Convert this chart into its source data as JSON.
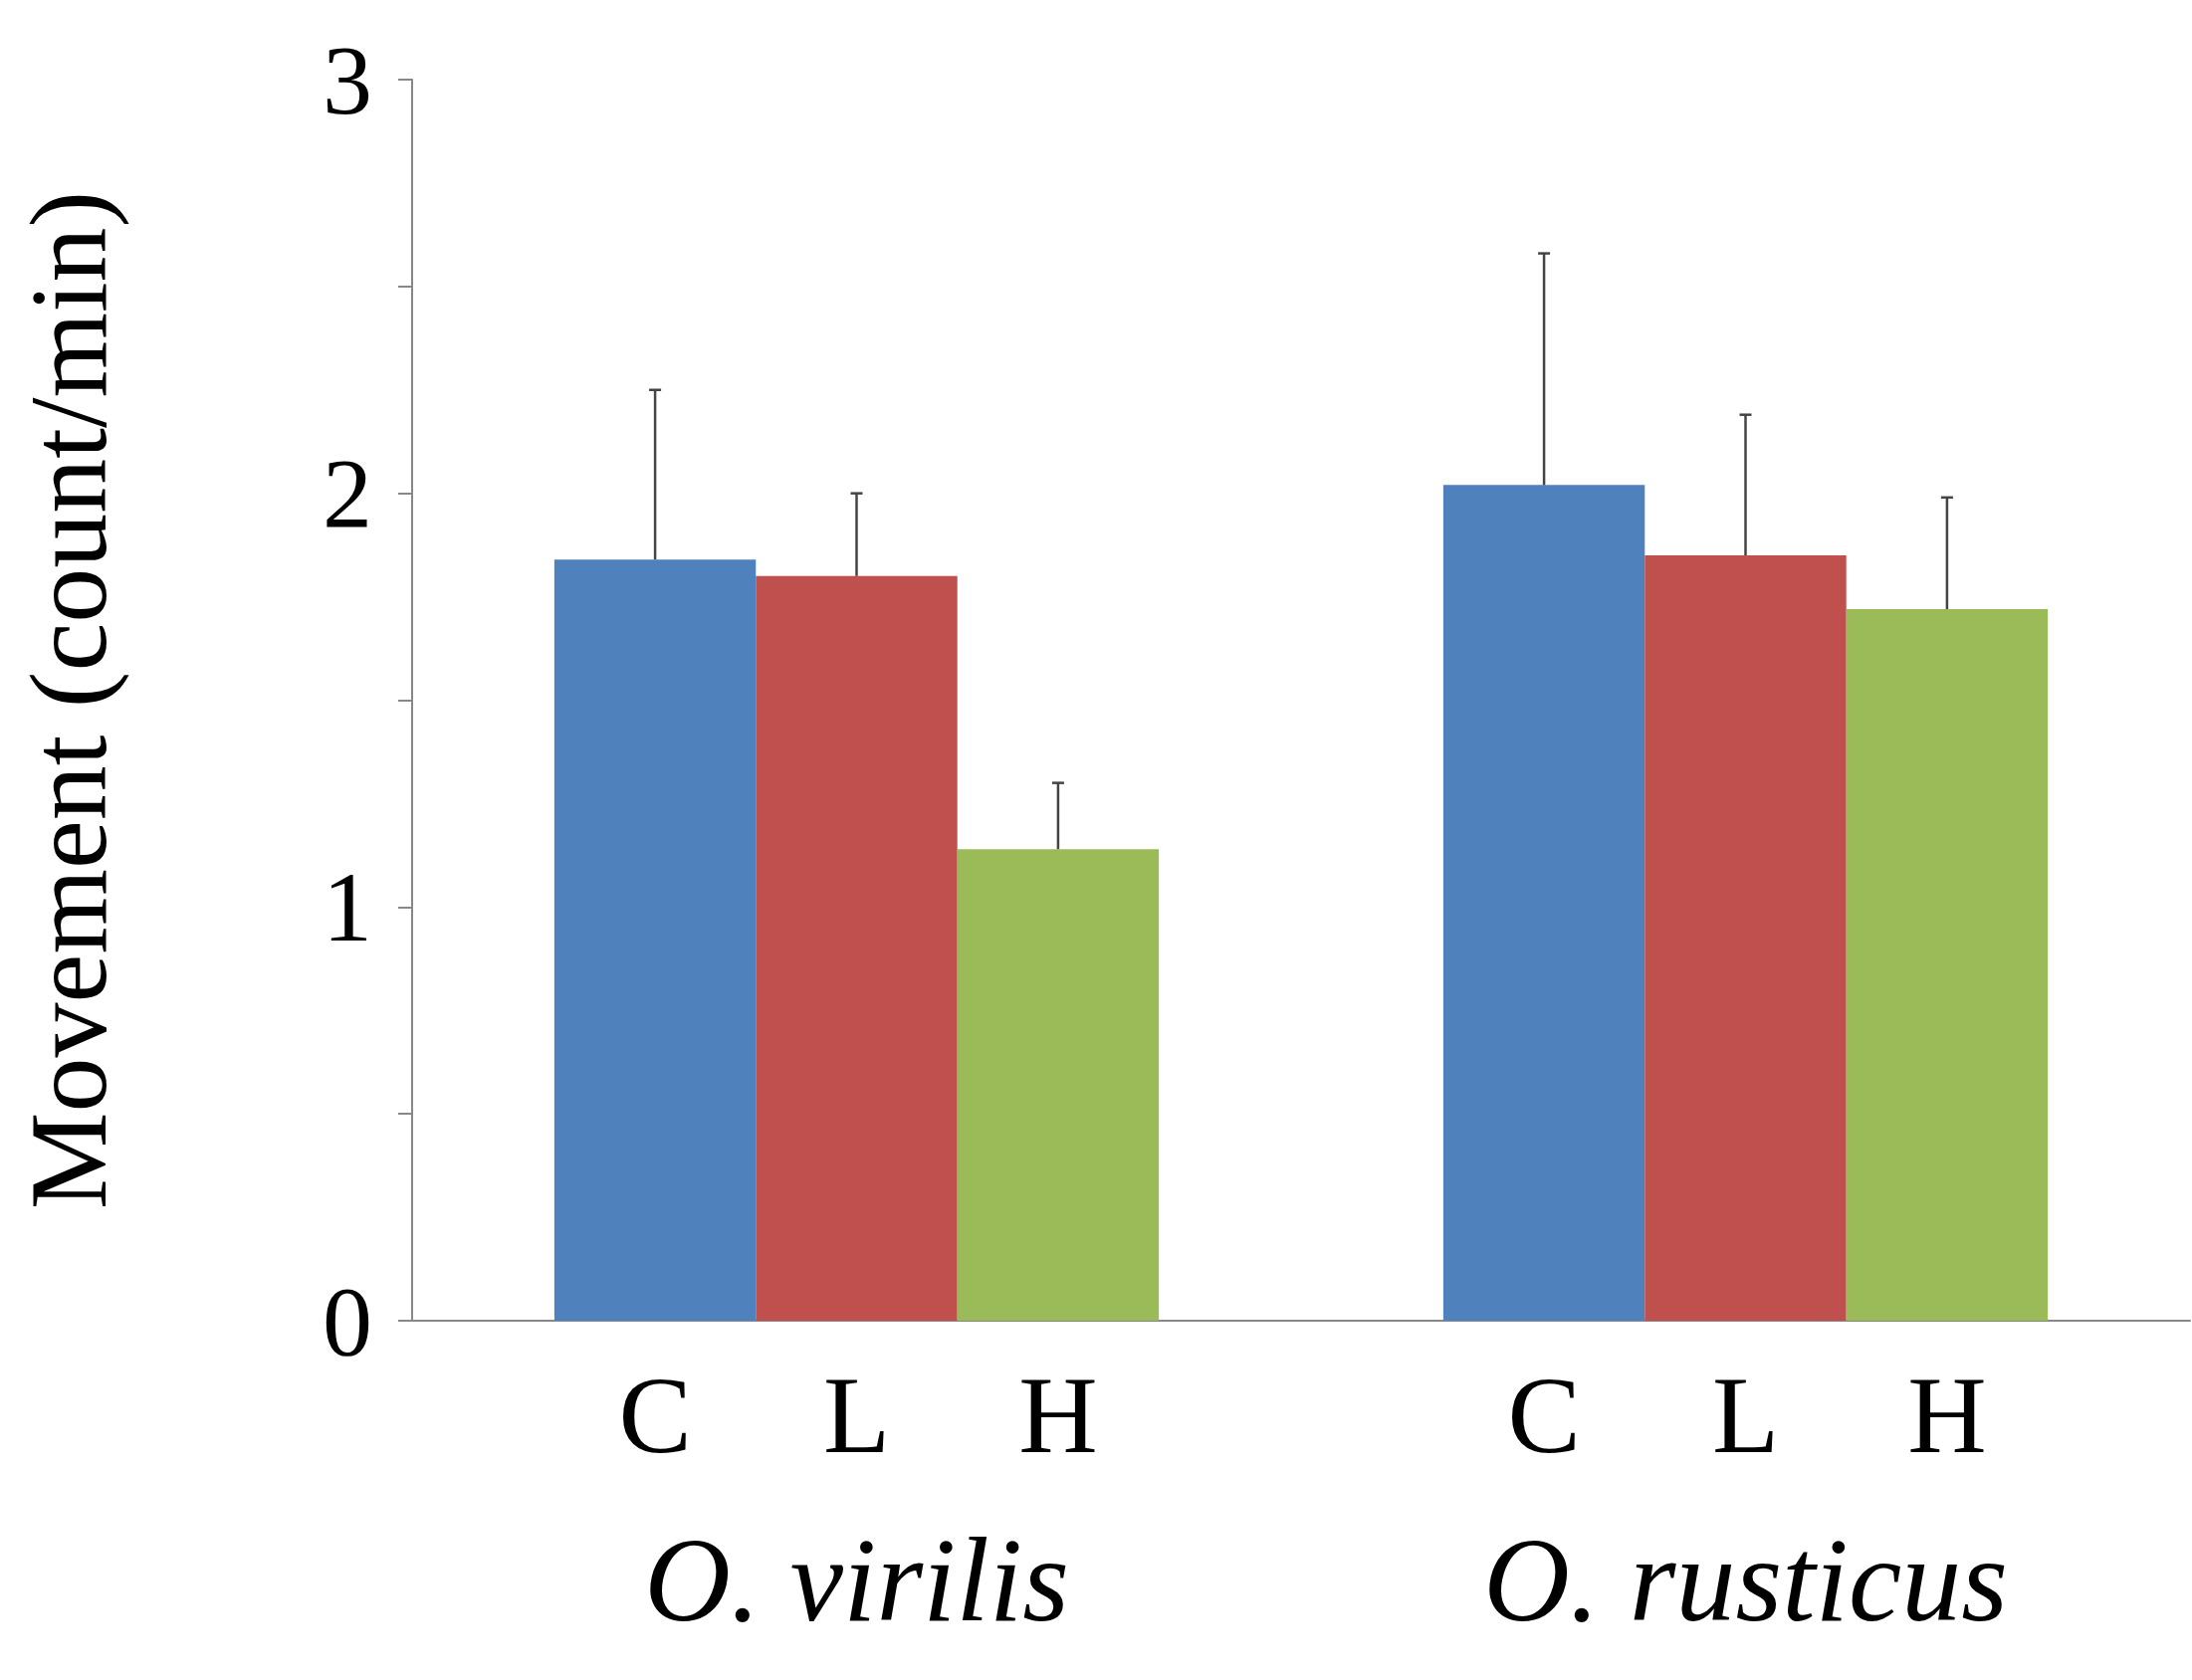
{
  "chart_data": {
    "type": "bar",
    "ylabel": "Movement (count/min)",
    "categories": [
      "O. virilis",
      "O. rusticus"
    ],
    "series": [
      {
        "name": "C",
        "color": "#4f81bd",
        "values": [
          1.84,
          2.02
        ],
        "errors": [
          [
            1.84,
            2.25
          ],
          [
            2.02,
            2.58
          ]
        ]
      },
      {
        "name": "L",
        "color": "#c0504d",
        "values": [
          1.8,
          1.85
        ],
        "errors": [
          [
            1.8,
            2.0
          ],
          [
            1.85,
            2.19
          ]
        ]
      },
      {
        "name": "H",
        "color": "#9bbb59",
        "values": [
          1.14,
          1.72
        ],
        "errors": [
          [
            1.14,
            1.3
          ],
          [
            1.72,
            1.99
          ]
        ]
      }
    ],
    "ylim": [
      0,
      3
    ],
    "yticks": [
      0,
      {
        "value": 0.5,
        "label": null
      },
      1,
      {
        "value": 1.5,
        "label": null
      },
      2,
      {
        "value": 2.5,
        "label": null
      },
      3
    ],
    "grid": false,
    "legend": false
  }
}
